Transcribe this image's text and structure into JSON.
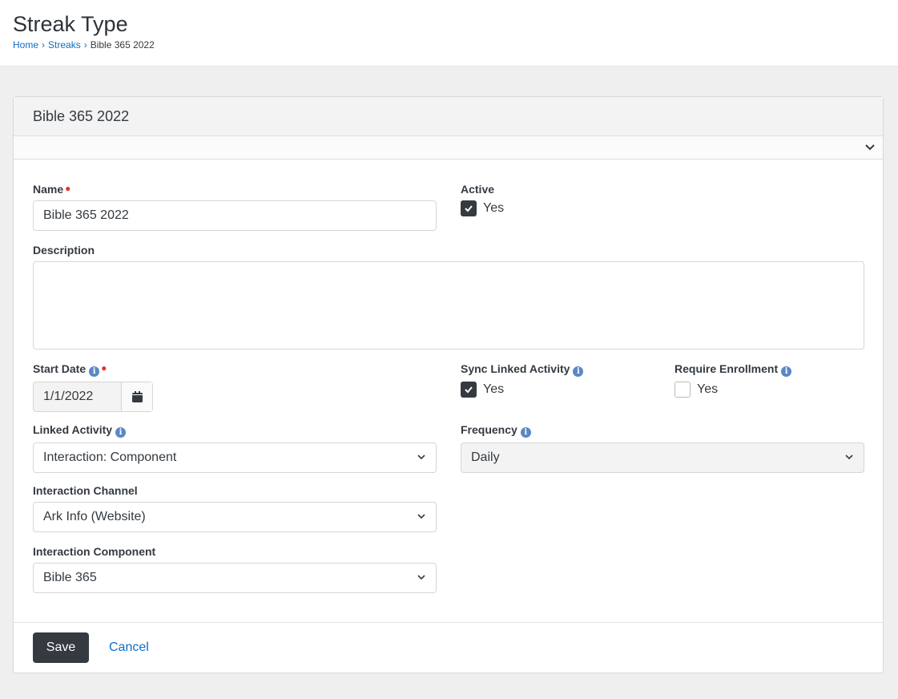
{
  "page": {
    "title": "Streak Type",
    "breadcrumb": [
      "Home",
      "Streaks",
      "Bible 365 2022"
    ]
  },
  "card": {
    "title": "Bible 365 2022"
  },
  "form": {
    "name": {
      "label": "Name",
      "value": "Bible 365 2022"
    },
    "active": {
      "label": "Active",
      "option": "Yes",
      "checked": true
    },
    "description": {
      "label": "Description",
      "value": ""
    },
    "start_date": {
      "label": "Start Date",
      "value": "1/1/2022"
    },
    "sync": {
      "label": "Sync Linked Activity",
      "option": "Yes",
      "checked": true
    },
    "require": {
      "label": "Require Enrollment",
      "option": "Yes",
      "checked": false
    },
    "linked": {
      "label": "Linked Activity",
      "value": "Interaction: Component"
    },
    "frequency": {
      "label": "Frequency",
      "value": "Daily"
    },
    "channel": {
      "label": "Interaction Channel",
      "value": "Ark Info (Website)"
    },
    "component": {
      "label": "Interaction Component",
      "value": "Bible 365"
    }
  },
  "actions": {
    "save": "Save",
    "cancel": "Cancel"
  }
}
